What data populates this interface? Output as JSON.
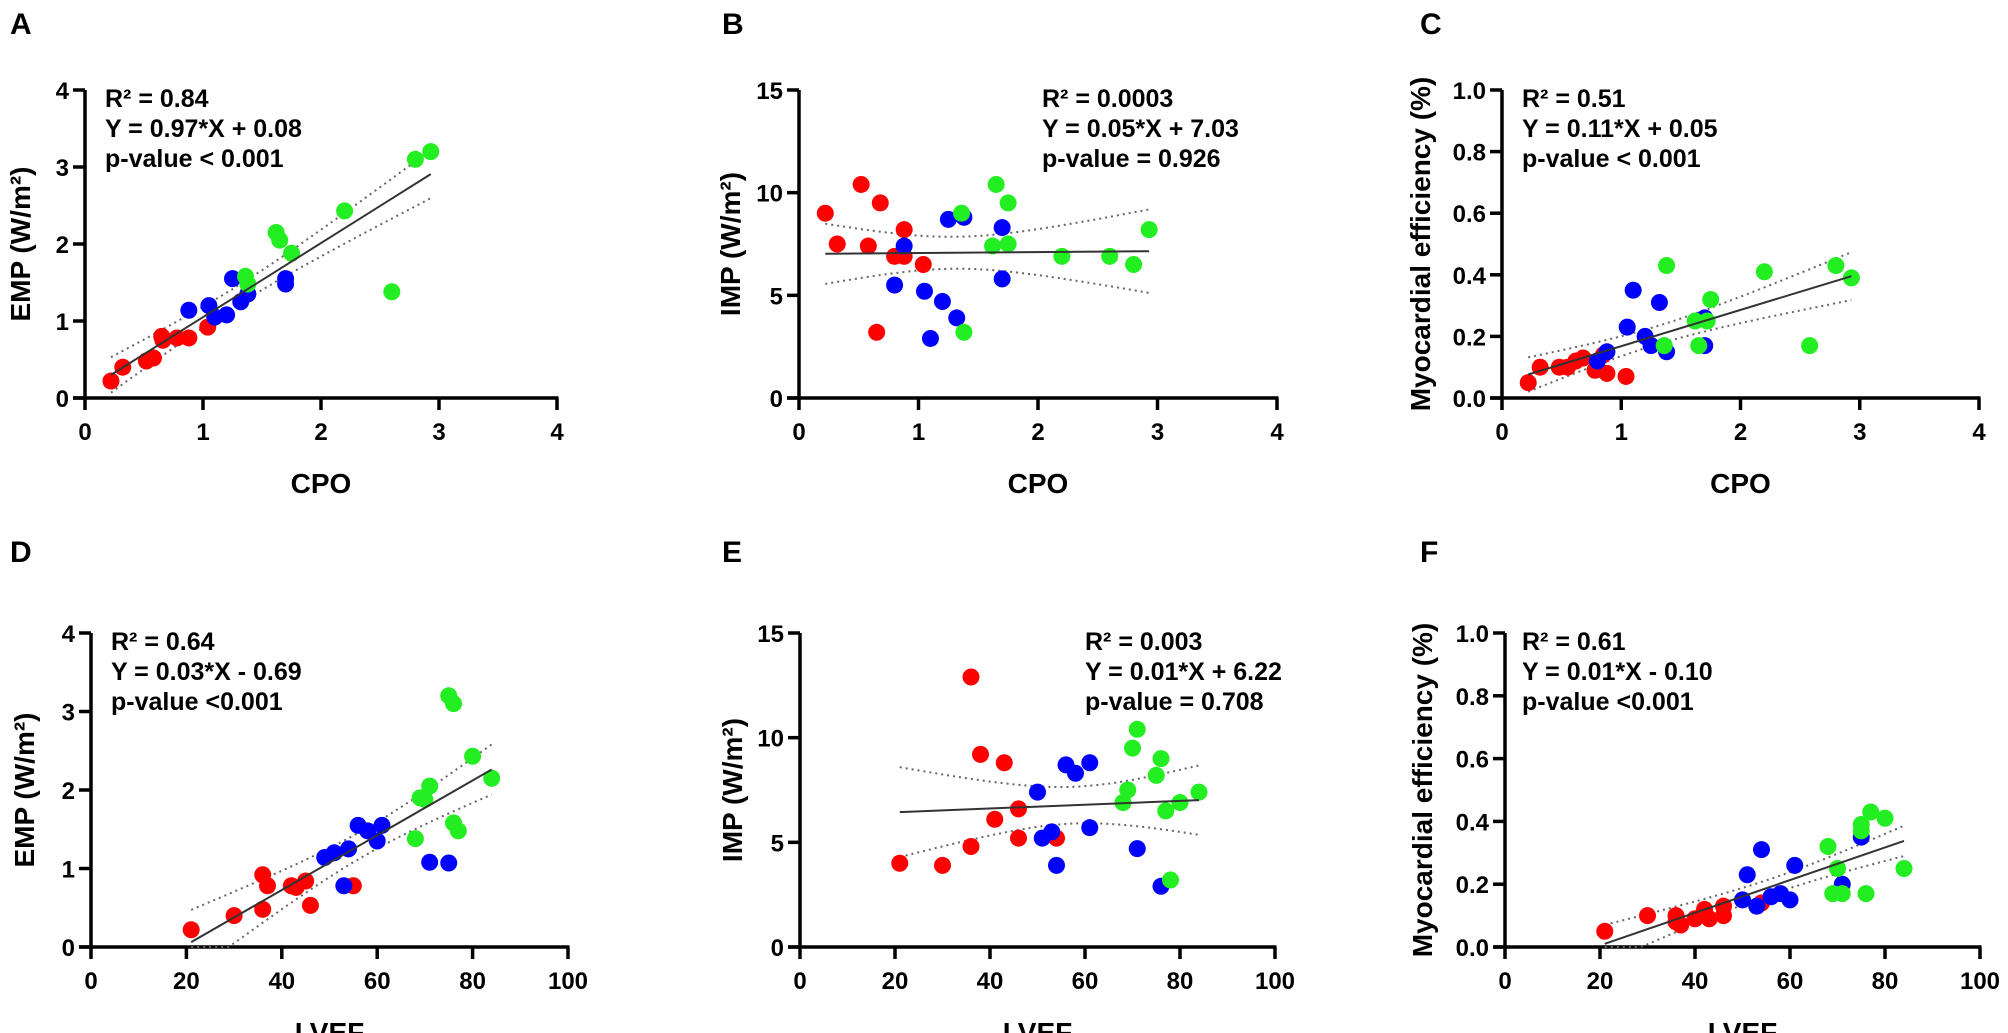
{
  "chart_data": [
    {
      "panel": "A",
      "type": "scatter",
      "xlabel": "CPO",
      "ylabel": "EMP (W/m²)",
      "xlim": [
        0,
        4
      ],
      "ylim": [
        0,
        4
      ],
      "xticks": [
        "0",
        "1",
        "2",
        "3",
        "4"
      ],
      "yticks": [
        "0",
        "1",
        "2",
        "3",
        "4"
      ],
      "annotation": [
        "R² = 0.84",
        "Y = 0.97*X + 0.08",
        "p-value < 0.001"
      ],
      "fit": {
        "slope": 0.97,
        "intercept": 0.08,
        "r2": 0.84
      },
      "series": [
        {
          "color": "#ff0000",
          "points": [
            [
              0.22,
              0.22
            ],
            [
              0.32,
              0.4
            ],
            [
              0.52,
              0.48
            ],
            [
              0.58,
              0.52
            ],
            [
              0.65,
              0.8
            ],
            [
              0.66,
              0.75
            ],
            [
              0.78,
              0.78
            ],
            [
              0.88,
              0.78
            ],
            [
              1.04,
              0.92
            ]
          ]
        },
        {
          "color": "#0000ff",
          "points": [
            [
              0.88,
              1.14
            ],
            [
              1.05,
              1.2
            ],
            [
              1.1,
              1.05
            ],
            [
              1.2,
              1.08
            ],
            [
              1.25,
              1.55
            ],
            [
              1.32,
              1.25
            ],
            [
              1.38,
              1.35
            ],
            [
              1.7,
              1.55
            ],
            [
              1.7,
              1.48
            ]
          ]
        },
        {
          "color": "#22ee22",
          "points": [
            [
              1.36,
              1.58
            ],
            [
              1.38,
              1.48
            ],
            [
              1.62,
              2.15
            ],
            [
              1.65,
              2.05
            ],
            [
              1.75,
              1.88
            ],
            [
              2.2,
              2.43
            ],
            [
              2.6,
              1.38
            ],
            [
              2.8,
              3.1
            ],
            [
              2.93,
              3.2
            ]
          ]
        }
      ]
    },
    {
      "panel": "B",
      "type": "scatter",
      "xlabel": "CPO",
      "ylabel": "IMP (W/m²)",
      "xlim": [
        0,
        4
      ],
      "ylim": [
        0,
        15
      ],
      "xticks": [
        "0",
        "1",
        "2",
        "3",
        "4"
      ],
      "yticks": [
        "0",
        "5",
        "10",
        "15"
      ],
      "annotation": [
        "R² = 0.0003",
        "Y = 0.05*X + 7.03",
        "p-value = 0.926"
      ],
      "fit": {
        "slope": 0.05,
        "intercept": 7.03,
        "r2": 0.0003
      },
      "series": [
        {
          "color": "#ff0000",
          "points": [
            [
              0.22,
              9.0
            ],
            [
              0.32,
              7.5
            ],
            [
              0.52,
              10.4
            ],
            [
              0.58,
              7.4
            ],
            [
              0.68,
              9.5
            ],
            [
              0.65,
              3.2
            ],
            [
              0.8,
              6.9
            ],
            [
              0.88,
              8.2
            ],
            [
              0.88,
              6.9
            ],
            [
              1.04,
              6.5
            ]
          ]
        },
        {
          "color": "#0000ff",
          "points": [
            [
              0.8,
              5.5
            ],
            [
              0.88,
              7.4
            ],
            [
              1.05,
              5.2
            ],
            [
              1.1,
              2.9
            ],
            [
              1.2,
              4.7
            ],
            [
              1.25,
              8.7
            ],
            [
              1.32,
              3.9
            ],
            [
              1.38,
              8.8
            ],
            [
              1.7,
              8.3
            ],
            [
              1.7,
              5.8
            ]
          ]
        },
        {
          "color": "#22ee22",
          "points": [
            [
              1.36,
              9.0
            ],
            [
              1.38,
              3.2
            ],
            [
              1.62,
              7.4
            ],
            [
              1.65,
              10.4
            ],
            [
              1.75,
              9.5
            ],
            [
              1.75,
              7.5
            ],
            [
              2.2,
              6.9
            ],
            [
              2.6,
              6.9
            ],
            [
              2.8,
              6.5
            ],
            [
              2.93,
              8.2
            ]
          ]
        }
      ]
    },
    {
      "panel": "C",
      "type": "scatter",
      "xlabel": "CPO",
      "ylabel": "Myocardial efficiency (%)",
      "xlim": [
        0,
        4
      ],
      "ylim": [
        0,
        1
      ],
      "xticks": [
        "0",
        "1",
        "2",
        "3",
        "4"
      ],
      "yticks": [
        "0.0",
        "0.2",
        "0.4",
        "0.6",
        "0.8",
        "1.0"
      ],
      "annotation": [
        "R² = 0.51",
        "Y = 0.11*X + 0.05",
        "p-value < 0.001"
      ],
      "fit": {
        "slope": 0.11,
        "intercept": 0.05,
        "r2": 0.51
      },
      "series": [
        {
          "color": "#ff0000",
          "points": [
            [
              0.22,
              0.05
            ],
            [
              0.32,
              0.1
            ],
            [
              0.48,
              0.1
            ],
            [
              0.55,
              0.1
            ],
            [
              0.62,
              0.12
            ],
            [
              0.68,
              0.13
            ],
            [
              0.78,
              0.09
            ],
            [
              0.85,
              0.14
            ],
            [
              0.88,
              0.08
            ],
            [
              1.04,
              0.07
            ]
          ]
        },
        {
          "color": "#0000ff",
          "points": [
            [
              0.8,
              0.12
            ],
            [
              0.88,
              0.15
            ],
            [
              1.05,
              0.23
            ],
            [
              1.1,
              0.35
            ],
            [
              1.2,
              0.2
            ],
            [
              1.25,
              0.17
            ],
            [
              1.32,
              0.31
            ],
            [
              1.38,
              0.15
            ],
            [
              1.7,
              0.26
            ],
            [
              1.7,
              0.17
            ]
          ]
        },
        {
          "color": "#22ee22",
          "points": [
            [
              1.36,
              0.17
            ],
            [
              1.38,
              0.43
            ],
            [
              1.62,
              0.25
            ],
            [
              1.65,
              0.17
            ],
            [
              1.72,
              0.25
            ],
            [
              1.75,
              0.32
            ],
            [
              2.2,
              0.41
            ],
            [
              2.58,
              0.17
            ],
            [
              2.8,
              0.43
            ],
            [
              2.93,
              0.39
            ]
          ]
        }
      ]
    },
    {
      "panel": "D",
      "type": "scatter",
      "xlabel": "LVEF",
      "ylabel": "EMP (W/m²)",
      "xlim": [
        0,
        100
      ],
      "ylim": [
        0,
        4
      ],
      "xticks": [
        "0",
        "20",
        "40",
        "60",
        "80",
        "100"
      ],
      "yticks": [
        "0",
        "1",
        "2",
        "3",
        "4"
      ],
      "annotation": [
        "R² = 0.64",
        "Y = 0.03*X - 0.69",
        "p-value <0.001"
      ],
      "fit": {
        "slope": 0.03,
        "intercept": -0.69,
        "r2": 0.64
      },
      "series": [
        {
          "color": "#ff0000",
          "points": [
            [
              21,
              0.22
            ],
            [
              30,
              0.4
            ],
            [
              36,
              0.48
            ],
            [
              36,
              0.92
            ],
            [
              37,
              0.78
            ],
            [
              42,
              0.78
            ],
            [
              43,
              0.76
            ],
            [
              45,
              0.84
            ],
            [
              46,
              0.53
            ],
            [
              55,
              0.78
            ]
          ]
        },
        {
          "color": "#0000ff",
          "points": [
            [
              49,
              1.14
            ],
            [
              51,
              1.2
            ],
            [
              53,
              0.78
            ],
            [
              54,
              1.25
            ],
            [
              56,
              1.55
            ],
            [
              58,
              1.48
            ],
            [
              60,
              1.35
            ],
            [
              61,
              1.55
            ],
            [
              71,
              1.08
            ],
            [
              75,
              1.07
            ]
          ]
        },
        {
          "color": "#22ee22",
          "points": [
            [
              68,
              1.38
            ],
            [
              69,
              1.9
            ],
            [
              70,
              1.88
            ],
            [
              71,
              2.05
            ],
            [
              75,
              3.2
            ],
            [
              76,
              1.58
            ],
            [
              76,
              3.1
            ],
            [
              77,
              1.48
            ],
            [
              80,
              2.43
            ],
            [
              84,
              2.15
            ]
          ]
        }
      ]
    },
    {
      "panel": "E",
      "type": "scatter",
      "xlabel": "LVEF",
      "ylabel": "IMP (W/m²)",
      "xlim": [
        0,
        100
      ],
      "ylim": [
        0,
        15
      ],
      "xticks": [
        "0",
        "20",
        "40",
        "60",
        "80",
        "100"
      ],
      "yticks": [
        "0",
        "5",
        "10",
        "15"
      ],
      "annotation": [
        "R² = 0.003",
        "Y = 0.01*X + 6.22",
        "p-value = 0.708"
      ],
      "fit": {
        "slope": 0.01,
        "intercept": 6.22,
        "r2": 0.003
      },
      "series": [
        {
          "color": "#ff0000",
          "points": [
            [
              21,
              4.0
            ],
            [
              30,
              3.9
            ],
            [
              36,
              4.8
            ],
            [
              36,
              12.9
            ],
            [
              38,
              9.2
            ],
            [
              41,
              6.1
            ],
            [
              43,
              8.8
            ],
            [
              46,
              6.6
            ],
            [
              46,
              5.2
            ],
            [
              54,
              5.2
            ]
          ]
        },
        {
          "color": "#0000ff",
          "points": [
            [
              50,
              7.4
            ],
            [
              51,
              5.2
            ],
            [
              53,
              5.5
            ],
            [
              54,
              3.9
            ],
            [
              56,
              8.7
            ],
            [
              58,
              8.3
            ],
            [
              61,
              8.8
            ],
            [
              61,
              5.7
            ],
            [
              71,
              4.7
            ],
            [
              76,
              2.9
            ]
          ]
        },
        {
          "color": "#22ee22",
          "points": [
            [
              68,
              6.9
            ],
            [
              69,
              7.5
            ],
            [
              70,
              9.5
            ],
            [
              71,
              10.4
            ],
            [
              75,
              8.2
            ],
            [
              76,
              9.0
            ],
            [
              77,
              6.5
            ],
            [
              78,
              3.2
            ],
            [
              80,
              6.9
            ],
            [
              84,
              7.4
            ]
          ]
        }
      ]
    },
    {
      "panel": "F",
      "type": "scatter",
      "xlabel": "LVEF",
      "ylabel": "Myocardial efficiency (%)",
      "xlim": [
        0,
        100
      ],
      "ylim": [
        0,
        1
      ],
      "xticks": [
        "0",
        "20",
        "40",
        "60",
        "80",
        "100"
      ],
      "yticks": [
        "0.0",
        "0.2",
        "0.4",
        "0.6",
        "0.8",
        "1.0"
      ],
      "annotation": [
        "R² = 0.61",
        "Y = 0.01*X - 0.10",
        "p-value <0.001"
      ],
      "fit": {
        "slope": 0.01,
        "intercept": -0.1,
        "r2": 0.61
      },
      "series": [
        {
          "color": "#ff0000",
          "points": [
            [
              21,
              0.05
            ],
            [
              30,
              0.1
            ],
            [
              36,
              0.08
            ],
            [
              36,
              0.1
            ],
            [
              37,
              0.07
            ],
            [
              40,
              0.09
            ],
            [
              42,
              0.12
            ],
            [
              43,
              0.09
            ],
            [
              46,
              0.1
            ],
            [
              46,
              0.13
            ],
            [
              54,
              0.14
            ]
          ]
        },
        {
          "color": "#0000ff",
          "points": [
            [
              50,
              0.15
            ],
            [
              51,
              0.23
            ],
            [
              53,
              0.13
            ],
            [
              54,
              0.31
            ],
            [
              56,
              0.16
            ],
            [
              58,
              0.17
            ],
            [
              60,
              0.15
            ],
            [
              61,
              0.26
            ],
            [
              71,
              0.2
            ],
            [
              75,
              0.35
            ]
          ]
        },
        {
          "color": "#22ee22",
          "points": [
            [
              68,
              0.32
            ],
            [
              69,
              0.17
            ],
            [
              70,
              0.25
            ],
            [
              71,
              0.17
            ],
            [
              75,
              0.39
            ],
            [
              75,
              0.37
            ],
            [
              76,
              0.17
            ],
            [
              77,
              0.43
            ],
            [
              80,
              0.41
            ],
            [
              84,
              0.25
            ]
          ]
        }
      ]
    }
  ]
}
